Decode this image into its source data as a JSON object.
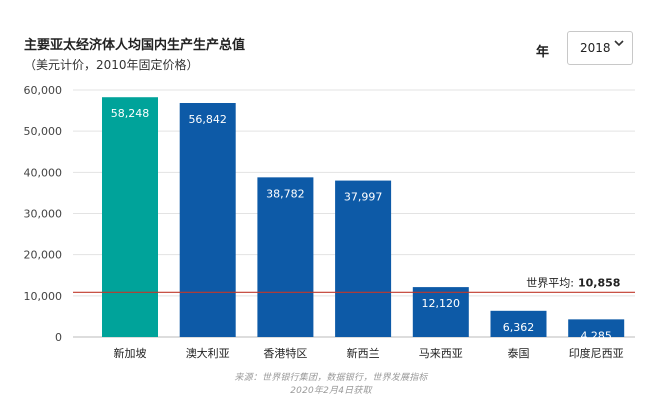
{
  "header": {
    "title": "主要亚太经济体人均国内生产生产总值",
    "subtitle": "（美元计价，2010年固定价格）"
  },
  "controls": {
    "year_label": "年",
    "year_value": "2018"
  },
  "chart_data": {
    "type": "bar",
    "categories": [
      "新加坡",
      "澳大利亚",
      "香港特区",
      "新西兰",
      "马来西亚",
      "泰国",
      "印度尼西亚"
    ],
    "values": [
      58248,
      56842,
      38782,
      37997,
      12120,
      6362,
      4285
    ],
    "value_labels": [
      "58,248",
      "56,842",
      "38,782",
      "37,997",
      "12,120",
      "6,362",
      "4,285"
    ],
    "ylim": [
      0,
      60000
    ],
    "yticks": [
      0,
      10000,
      20000,
      30000,
      40000,
      50000,
      60000
    ],
    "ytick_labels": [
      "0",
      "10,000",
      "20,000",
      "30,000",
      "40,000",
      "50,000",
      "60,000"
    ],
    "grid": true,
    "colors": {
      "highlight": "#00a39a",
      "default": "#0d5aa7",
      "reference_line": "#c0392b",
      "grid": "#e3e3e3"
    },
    "highlight_index": 0,
    "reference_line": {
      "value": 10858,
      "label": "世界平均:",
      "value_label": "10,858"
    }
  },
  "footer": {
    "source": "来源：世界银行集团，数据银行，世界发展指标",
    "retrieved": "2020年2月4日获取"
  }
}
